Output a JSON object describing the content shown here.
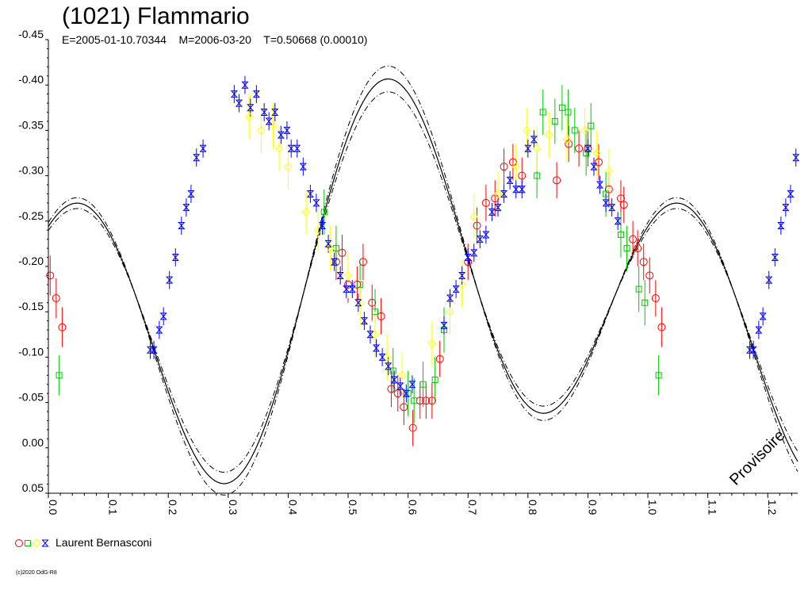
{
  "colors": {
    "axis": "#000000",
    "model_line": "#000000",
    "red": "#ff0000",
    "green": "#00c800",
    "yellow": "#ffff00",
    "blue": "#0000ff"
  },
  "legend": {
    "label": "Laurent Bernasconi",
    "markers": [
      "circle-red",
      "square-green",
      "diamond-yellow",
      "hourglass-blue"
    ]
  },
  "copyright": "(c)2020 OdG-R8",
  "chart_data": {
    "type": "scatter",
    "title": "(1021) Flammario",
    "subtitle": "E=2005-01-10.70344    M=2006-03-20    T=0.50668 (0.00010)",
    "stamp": "Provisoire",
    "xlim": [
      0.0,
      1.25
    ],
    "ylim": [
      -0.45,
      0.05
    ],
    "y_inverted": true,
    "x_ticks": [
      0.0,
      0.1,
      0.2,
      0.3,
      0.4,
      0.5,
      0.6,
      0.7,
      0.8,
      0.9,
      1.0,
      1.1,
      1.2
    ],
    "x_tick_labels": [
      "0.0",
      "0.1",
      "0.2",
      "0.3",
      "0.4",
      "0.5",
      "0.6",
      "0.7",
      "0.8",
      "0.9",
      "1.0",
      "1.1",
      "1.2"
    ],
    "y_ticks": [
      -0.45,
      -0.4,
      -0.35,
      -0.3,
      -0.25,
      -0.2,
      -0.15,
      -0.1,
      -0.05,
      0.0,
      0.05
    ],
    "y_tick_labels": [
      "-0.45",
      "-0.40",
      "-0.35",
      "-0.30",
      "-0.25",
      "-0.20",
      "-0.15",
      "-0.10",
      "-0.05",
      "0.00",
      "0.05"
    ],
    "model": {
      "label": "fit",
      "offset": -0.17,
      "harmonics": [
        {
          "a": 0.05,
          "b": 0.061
        },
        {
          "a": -0.124,
          "b": -0.112
        }
      ],
      "band": 0.006
    },
    "series": [
      {
        "color": "red",
        "marker": "circle",
        "points": [
          [
            0.003,
            -0.19,
            0.022
          ],
          [
            0.013,
            -0.165,
            0.022
          ],
          [
            0.023,
            -0.133,
            0.022
          ],
          [
            0.48,
            -0.205,
            0.02
          ],
          [
            0.49,
            -0.215,
            0.02
          ],
          [
            0.5,
            -0.18,
            0.02
          ],
          [
            0.515,
            -0.18,
            0.02
          ],
          [
            0.525,
            -0.205,
            0.02
          ],
          [
            0.54,
            -0.16,
            0.02
          ],
          [
            0.555,
            -0.145,
            0.02
          ],
          [
            0.572,
            -0.065,
            0.02
          ],
          [
            0.583,
            -0.06,
            0.02
          ],
          [
            0.593,
            -0.045,
            0.02
          ],
          [
            0.608,
            -0.022,
            0.02
          ],
          [
            0.62,
            -0.052,
            0.02
          ],
          [
            0.63,
            -0.052,
            0.02
          ],
          [
            0.64,
            -0.052,
            0.02
          ],
          [
            0.653,
            -0.098,
            0.02
          ],
          [
            0.7,
            -0.205,
            0.02
          ],
          [
            0.715,
            -0.245,
            0.02
          ],
          [
            0.73,
            -0.27,
            0.02
          ],
          [
            0.745,
            -0.275,
            0.02
          ],
          [
            0.76,
            -0.31,
            0.02
          ],
          [
            0.775,
            -0.315,
            0.02
          ],
          [
            0.79,
            -0.3,
            0.02
          ],
          [
            0.848,
            -0.295,
            0.02
          ],
          [
            0.868,
            -0.335,
            0.02
          ],
          [
            0.885,
            -0.33,
            0.02
          ],
          [
            0.9,
            -0.33,
            0.02
          ],
          [
            0.918,
            -0.315,
            0.02
          ],
          [
            0.935,
            -0.285,
            0.02
          ],
          [
            0.955,
            -0.275,
            0.02
          ],
          [
            0.96,
            -0.268,
            0.02
          ],
          [
            0.975,
            -0.23,
            0.02
          ],
          [
            0.983,
            -0.22,
            0.02
          ],
          [
            0.993,
            -0.205,
            0.02
          ],
          [
            1.003,
            -0.19,
            0.02
          ],
          [
            1.013,
            -0.165,
            0.02
          ],
          [
            1.023,
            -0.133,
            0.022
          ]
        ]
      },
      {
        "color": "green",
        "marker": "square",
        "points": [
          [
            0.018,
            -0.08,
            0.022
          ],
          [
            0.46,
            -0.26,
            0.025
          ],
          [
            0.48,
            -0.22,
            0.025
          ],
          [
            0.52,
            -0.18,
            0.025
          ],
          [
            0.545,
            -0.15,
            0.025
          ],
          [
            0.575,
            -0.085,
            0.025
          ],
          [
            0.6,
            -0.06,
            0.025
          ],
          [
            0.61,
            -0.052,
            0.025
          ],
          [
            0.625,
            -0.07,
            0.025
          ],
          [
            0.645,
            -0.075,
            0.025
          ],
          [
            0.66,
            -0.13,
            0.025
          ],
          [
            0.815,
            -0.3,
            0.025
          ],
          [
            0.825,
            -0.37,
            0.025
          ],
          [
            0.845,
            -0.36,
            0.025
          ],
          [
            0.857,
            -0.375,
            0.025
          ],
          [
            0.867,
            -0.37,
            0.025
          ],
          [
            0.878,
            -0.35,
            0.025
          ],
          [
            0.897,
            -0.325,
            0.025
          ],
          [
            0.905,
            -0.355,
            0.025
          ],
          [
            0.93,
            -0.28,
            0.025
          ],
          [
            0.955,
            -0.235,
            0.025
          ],
          [
            0.965,
            -0.22,
            0.025
          ],
          [
            0.985,
            -0.175,
            0.025
          ],
          [
            0.995,
            -0.16,
            0.025
          ],
          [
            1.018,
            -0.08,
            0.022
          ]
        ]
      },
      {
        "color": "yellow",
        "marker": "diamond",
        "points": [
          [
            0.335,
            -0.365,
            0.025
          ],
          [
            0.355,
            -0.35,
            0.025
          ],
          [
            0.375,
            -0.355,
            0.025
          ],
          [
            0.385,
            -0.33,
            0.025
          ],
          [
            0.4,
            -0.31,
            0.025
          ],
          [
            0.43,
            -0.26,
            0.025
          ],
          [
            0.45,
            -0.24,
            0.025
          ],
          [
            0.47,
            -0.22,
            0.025
          ],
          [
            0.5,
            -0.19,
            0.025
          ],
          [
            0.52,
            -0.16,
            0.025
          ],
          [
            0.545,
            -0.125,
            0.025
          ],
          [
            0.565,
            -0.1,
            0.025
          ],
          [
            0.59,
            -0.08,
            0.025
          ],
          [
            0.64,
            -0.115,
            0.025
          ],
          [
            0.67,
            -0.15,
            0.025
          ],
          [
            0.69,
            -0.18,
            0.025
          ],
          [
            0.71,
            -0.255,
            0.025
          ],
          [
            0.75,
            -0.28,
            0.025
          ],
          [
            0.78,
            -0.31,
            0.025
          ],
          [
            0.798,
            -0.35,
            0.025
          ],
          [
            0.815,
            -0.33,
            0.025
          ],
          [
            0.835,
            -0.345,
            0.025
          ],
          [
            0.865,
            -0.34,
            0.025
          ],
          [
            0.895,
            -0.35,
            0.025
          ],
          [
            0.915,
            -0.325,
            0.025
          ],
          [
            0.935,
            -0.305,
            0.025
          ]
        ]
      },
      {
        "color": "blue",
        "marker": "hourglass",
        "points": [
          [
            0.17,
            -0.108,
            0.01
          ],
          [
            0.176,
            -0.108,
            0.01
          ],
          [
            0.185,
            -0.13,
            0.01
          ],
          [
            0.192,
            -0.145,
            0.01
          ],
          [
            0.202,
            -0.185,
            0.01
          ],
          [
            0.212,
            -0.21,
            0.01
          ],
          [
            0.222,
            -0.245,
            0.01
          ],
          [
            0.23,
            -0.265,
            0.01
          ],
          [
            0.238,
            -0.28,
            0.01
          ],
          [
            0.247,
            -0.32,
            0.01
          ],
          [
            0.258,
            -0.33,
            0.01
          ],
          [
            0.31,
            -0.39,
            0.01
          ],
          [
            0.318,
            -0.38,
            0.01
          ],
          [
            0.328,
            -0.4,
            0.01
          ],
          [
            0.337,
            -0.375,
            0.01
          ],
          [
            0.347,
            -0.39,
            0.01
          ],
          [
            0.36,
            -0.37,
            0.01
          ],
          [
            0.368,
            -0.36,
            0.01
          ],
          [
            0.378,
            -0.37,
            0.01
          ],
          [
            0.388,
            -0.345,
            0.01
          ],
          [
            0.398,
            -0.35,
            0.01
          ],
          [
            0.405,
            -0.33,
            0.01
          ],
          [
            0.415,
            -0.33,
            0.01
          ],
          [
            0.425,
            -0.31,
            0.01
          ],
          [
            0.437,
            -0.28,
            0.01
          ],
          [
            0.447,
            -0.27,
            0.01
          ],
          [
            0.457,
            -0.245,
            0.01
          ],
          [
            0.467,
            -0.225,
            0.01
          ],
          [
            0.477,
            -0.205,
            0.01
          ],
          [
            0.487,
            -0.19,
            0.01
          ],
          [
            0.497,
            -0.175,
            0.01
          ],
          [
            0.507,
            -0.175,
            0.01
          ],
          [
            0.517,
            -0.16,
            0.01
          ],
          [
            0.527,
            -0.14,
            0.01
          ],
          [
            0.537,
            -0.125,
            0.01
          ],
          [
            0.547,
            -0.11,
            0.01
          ],
          [
            0.557,
            -0.1,
            0.01
          ],
          [
            0.567,
            -0.09,
            0.01
          ],
          [
            0.577,
            -0.075,
            0.01
          ],
          [
            0.587,
            -0.068,
            0.01
          ],
          [
            0.597,
            -0.06,
            0.01
          ],
          [
            0.607,
            -0.07,
            0.01
          ],
          [
            0.66,
            -0.135,
            0.01
          ],
          [
            0.67,
            -0.165,
            0.01
          ],
          [
            0.68,
            -0.175,
            0.01
          ],
          [
            0.69,
            -0.19,
            0.01
          ],
          [
            0.7,
            -0.21,
            0.01
          ],
          [
            0.71,
            -0.215,
            0.01
          ],
          [
            0.72,
            -0.23,
            0.01
          ],
          [
            0.73,
            -0.235,
            0.01
          ],
          [
            0.74,
            -0.26,
            0.01
          ],
          [
            0.75,
            -0.265,
            0.01
          ],
          [
            0.76,
            -0.28,
            0.01
          ],
          [
            0.77,
            -0.295,
            0.01
          ],
          [
            0.78,
            -0.285,
            0.01
          ],
          [
            0.79,
            -0.285,
            0.01
          ],
          [
            0.8,
            -0.33,
            0.01
          ],
          [
            0.81,
            -0.34,
            0.01
          ],
          [
            0.9,
            -0.33,
            0.01
          ],
          [
            0.91,
            -0.31,
            0.01
          ],
          [
            0.92,
            -0.29,
            0.01
          ],
          [
            0.93,
            -0.27,
            0.01
          ],
          [
            0.94,
            -0.265,
            0.01
          ],
          [
            0.95,
            -0.25,
            0.01
          ],
          [
            1.17,
            -0.108,
            0.01
          ],
          [
            1.176,
            -0.108,
            0.01
          ],
          [
            1.185,
            -0.13,
            0.01
          ],
          [
            1.192,
            -0.145,
            0.01
          ],
          [
            1.202,
            -0.185,
            0.01
          ],
          [
            1.212,
            -0.21,
            0.01
          ],
          [
            1.222,
            -0.245,
            0.01
          ],
          [
            1.23,
            -0.265,
            0.01
          ],
          [
            1.238,
            -0.28,
            0.01
          ],
          [
            1.247,
            -0.32,
            0.01
          ]
        ]
      }
    ]
  }
}
